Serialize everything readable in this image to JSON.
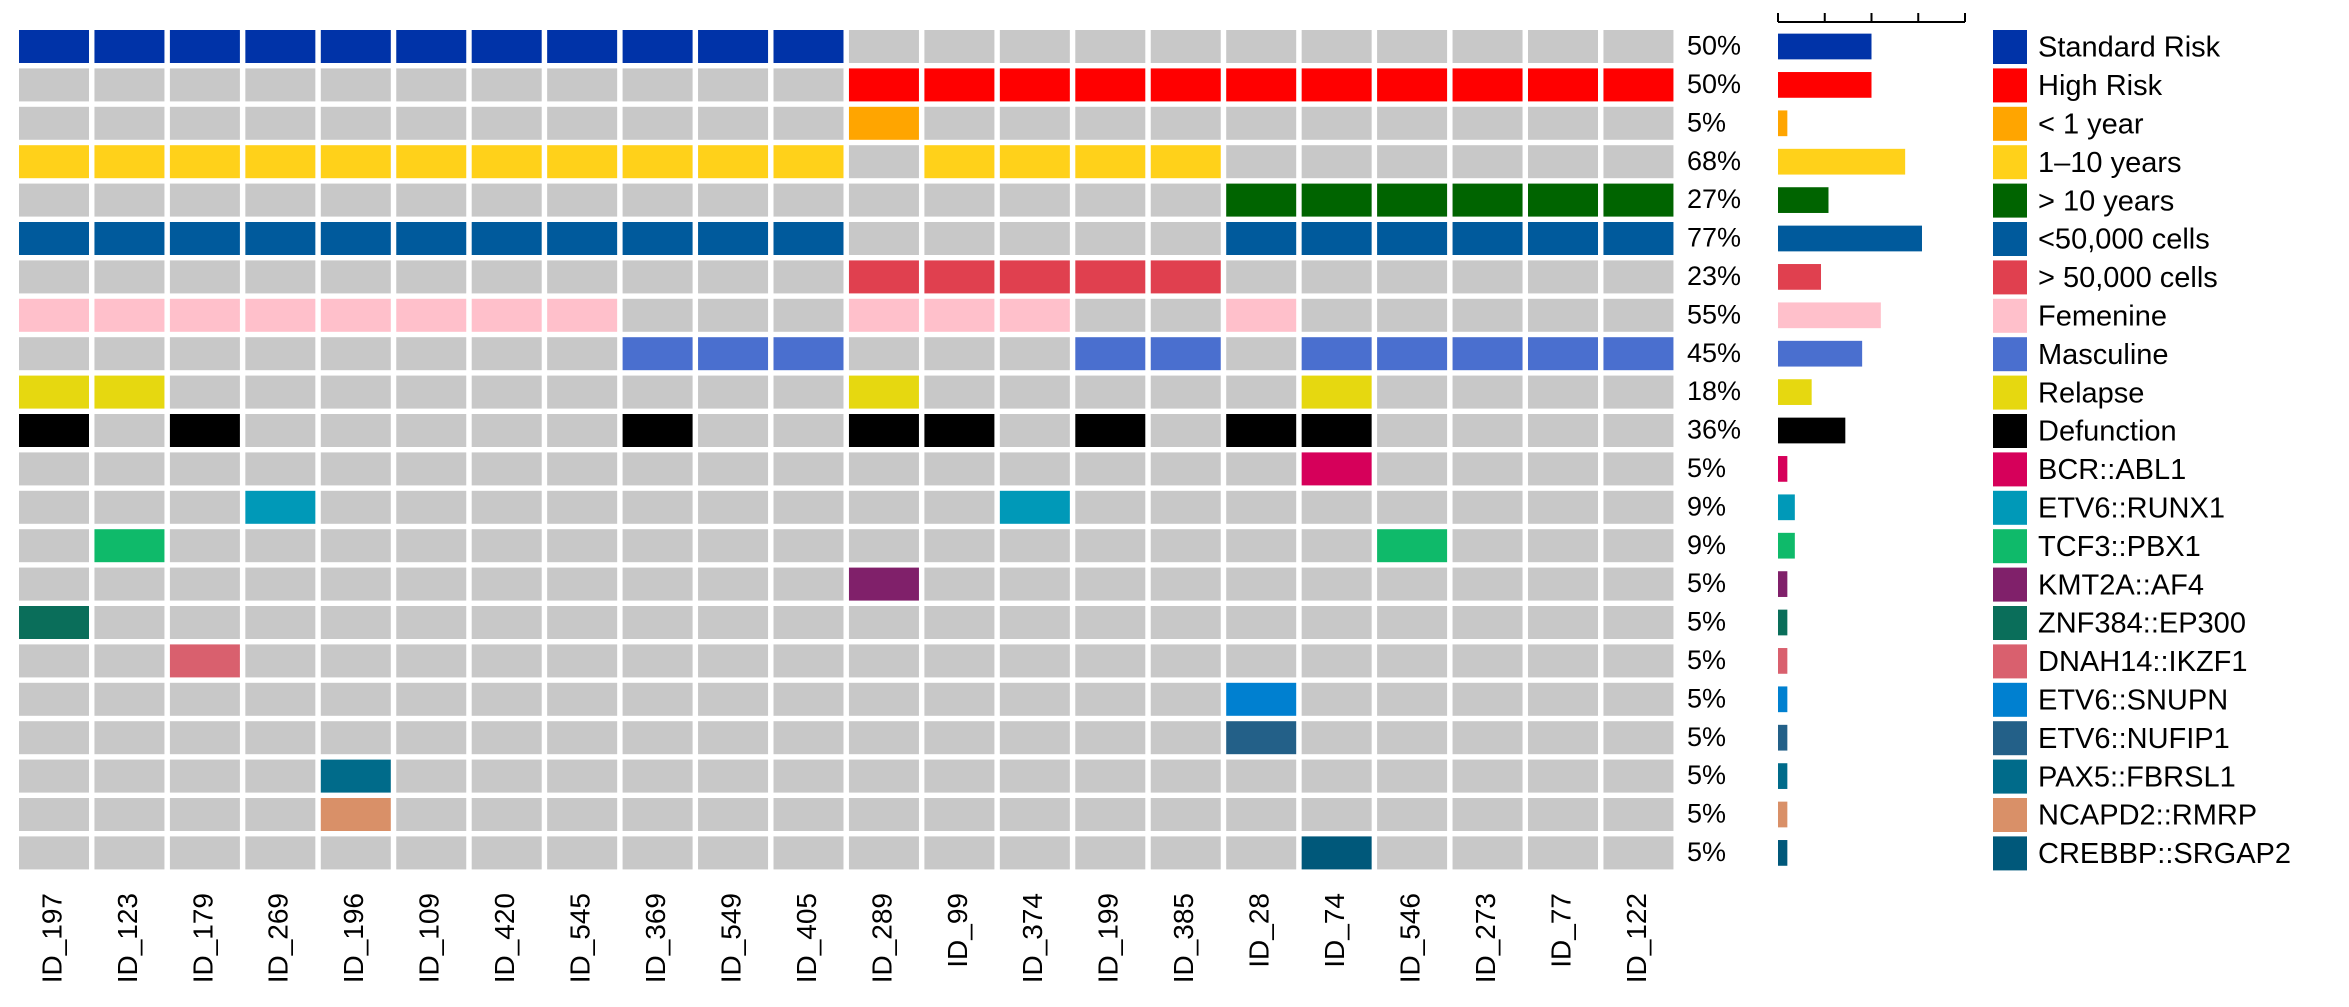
{
  "chart_data": {
    "type": "heatmap",
    "title": "",
    "xlabel": "",
    "ylabel": "",
    "background_color": "#c8c8c8",
    "samples": [
      "ID_197",
      "ID_123",
      "ID_179",
      "ID_269",
      "ID_196",
      "ID_109",
      "ID_420",
      "ID_545",
      "ID_369",
      "ID_549",
      "ID_405",
      "ID_289",
      "ID_99",
      "ID_374",
      "ID_199",
      "ID_385",
      "ID_28",
      "ID_74",
      "ID_546",
      "ID_273",
      "ID_77",
      "ID_122"
    ],
    "bar_axis": {
      "range": [
        0,
        100
      ],
      "ticks": [
        0,
        25,
        50,
        75,
        100
      ],
      "tick_labels_shown": false
    },
    "legend_position": "right",
    "rows": [
      {
        "name": "Standard Risk",
        "percent": "50%",
        "value": 50,
        "color": "#0033a8",
        "present": [
          1,
          1,
          1,
          1,
          1,
          1,
          1,
          1,
          1,
          1,
          1,
          0,
          0,
          0,
          0,
          0,
          0,
          0,
          0,
          0,
          0,
          0
        ]
      },
      {
        "name": "High Risk",
        "percent": "50%",
        "value": 50,
        "color": "#ff0000",
        "present": [
          0,
          0,
          0,
          0,
          0,
          0,
          0,
          0,
          0,
          0,
          0,
          1,
          1,
          1,
          1,
          1,
          1,
          1,
          1,
          1,
          1,
          1
        ]
      },
      {
        "name": "< 1 year",
        "percent": "5%",
        "value": 5,
        "color": "#ffa500",
        "present": [
          0,
          0,
          0,
          0,
          0,
          0,
          0,
          0,
          0,
          0,
          0,
          1,
          0,
          0,
          0,
          0,
          0,
          0,
          0,
          0,
          0,
          0
        ]
      },
      {
        "name": "1–10 years",
        "percent": "68%",
        "value": 68,
        "color": "#ffd11a",
        "present": [
          1,
          1,
          1,
          1,
          1,
          1,
          1,
          1,
          1,
          1,
          1,
          0,
          1,
          1,
          1,
          1,
          0,
          0,
          0,
          0,
          0,
          0
        ]
      },
      {
        "name": "> 10 years",
        "percent": "27%",
        "value": 27,
        "color": "#006400",
        "present": [
          0,
          0,
          0,
          0,
          0,
          0,
          0,
          0,
          0,
          0,
          0,
          0,
          0,
          0,
          0,
          0,
          1,
          1,
          1,
          1,
          1,
          1
        ]
      },
      {
        "name": "<50,000 cells",
        "percent": "77%",
        "value": 77,
        "color": "#005a9c",
        "present": [
          1,
          1,
          1,
          1,
          1,
          1,
          1,
          1,
          1,
          1,
          1,
          0,
          0,
          0,
          0,
          0,
          1,
          1,
          1,
          1,
          1,
          1
        ]
      },
      {
        "name": "> 50,000 cells",
        "percent": "23%",
        "value": 23,
        "color": "#e0404f",
        "present": [
          0,
          0,
          0,
          0,
          0,
          0,
          0,
          0,
          0,
          0,
          0,
          1,
          1,
          1,
          1,
          1,
          0,
          0,
          0,
          0,
          0,
          0
        ]
      },
      {
        "name": "Femenine",
        "percent": "55%",
        "value": 55,
        "color": "#ffc0cb",
        "present": [
          1,
          1,
          1,
          1,
          1,
          1,
          1,
          1,
          0,
          0,
          0,
          1,
          1,
          1,
          0,
          0,
          1,
          0,
          0,
          0,
          0,
          0
        ]
      },
      {
        "name": "Masculine",
        "percent": "45%",
        "value": 45,
        "color": "#4a6fcf",
        "present": [
          0,
          0,
          0,
          0,
          0,
          0,
          0,
          0,
          1,
          1,
          1,
          0,
          0,
          0,
          1,
          1,
          0,
          1,
          1,
          1,
          1,
          1
        ]
      },
      {
        "name": "Relapse",
        "percent": "18%",
        "value": 18,
        "color": "#e6d810",
        "present": [
          1,
          1,
          0,
          0,
          0,
          0,
          0,
          0,
          0,
          0,
          0,
          1,
          0,
          0,
          0,
          0,
          0,
          1,
          0,
          0,
          0,
          0
        ]
      },
      {
        "name": "Defunction",
        "percent": "36%",
        "value": 36,
        "color": "#000000",
        "present": [
          1,
          0,
          1,
          0,
          0,
          0,
          0,
          0,
          1,
          0,
          0,
          1,
          1,
          0,
          1,
          0,
          1,
          1,
          0,
          0,
          0,
          0
        ]
      },
      {
        "name": "BCR::ABL1",
        "percent": "5%",
        "value": 5,
        "color": "#d6005a",
        "present": [
          0,
          0,
          0,
          0,
          0,
          0,
          0,
          0,
          0,
          0,
          0,
          0,
          0,
          0,
          0,
          0,
          0,
          1,
          0,
          0,
          0,
          0
        ]
      },
      {
        "name": "ETV6::RUNX1",
        "percent": "9%",
        "value": 9,
        "color": "#0099b8",
        "present": [
          0,
          0,
          0,
          1,
          0,
          0,
          0,
          0,
          0,
          0,
          0,
          0,
          0,
          1,
          0,
          0,
          0,
          0,
          0,
          0,
          0,
          0
        ]
      },
      {
        "name": "TCF3::PBX1",
        "percent": "9%",
        "value": 9,
        "color": "#0fba6a",
        "present": [
          0,
          1,
          0,
          0,
          0,
          0,
          0,
          0,
          0,
          0,
          0,
          0,
          0,
          0,
          0,
          0,
          0,
          0,
          1,
          0,
          0,
          0
        ]
      },
      {
        "name": "KMT2A::AF4",
        "percent": "5%",
        "value": 5,
        "color": "#80206a",
        "present": [
          0,
          0,
          0,
          0,
          0,
          0,
          0,
          0,
          0,
          0,
          0,
          1,
          0,
          0,
          0,
          0,
          0,
          0,
          0,
          0,
          0,
          0
        ]
      },
      {
        "name": "ZNF384::EP300",
        "percent": "5%",
        "value": 5,
        "color": "#0a6e5a",
        "present": [
          1,
          0,
          0,
          0,
          0,
          0,
          0,
          0,
          0,
          0,
          0,
          0,
          0,
          0,
          0,
          0,
          0,
          0,
          0,
          0,
          0,
          0
        ]
      },
      {
        "name": "DNAH14::IKZF1",
        "percent": "5%",
        "value": 5,
        "color": "#d9606e",
        "present": [
          0,
          0,
          1,
          0,
          0,
          0,
          0,
          0,
          0,
          0,
          0,
          0,
          0,
          0,
          0,
          0,
          0,
          0,
          0,
          0,
          0,
          0
        ]
      },
      {
        "name": "ETV6::SNUPN",
        "percent": "5%",
        "value": 5,
        "color": "#0080d0",
        "present": [
          0,
          0,
          0,
          0,
          0,
          0,
          0,
          0,
          0,
          0,
          0,
          0,
          0,
          0,
          0,
          0,
          1,
          0,
          0,
          0,
          0,
          0
        ]
      },
      {
        "name": "ETV6::NUFIP1",
        "percent": "5%",
        "value": 5,
        "color": "#236088",
        "present": [
          0,
          0,
          0,
          0,
          0,
          0,
          0,
          0,
          0,
          0,
          0,
          0,
          0,
          0,
          0,
          0,
          1,
          0,
          0,
          0,
          0,
          0
        ]
      },
      {
        "name": "PAX5::FBRSL1",
        "percent": "5%",
        "value": 5,
        "color": "#006b8a",
        "present": [
          0,
          0,
          0,
          0,
          1,
          0,
          0,
          0,
          0,
          0,
          0,
          0,
          0,
          0,
          0,
          0,
          0,
          0,
          0,
          0,
          0,
          0
        ]
      },
      {
        "name": "NCAPD2::RMRP",
        "percent": "5%",
        "value": 5,
        "color": "#d99068",
        "present": [
          0,
          0,
          0,
          0,
          1,
          0,
          0,
          0,
          0,
          0,
          0,
          0,
          0,
          0,
          0,
          0,
          0,
          0,
          0,
          0,
          0,
          0
        ]
      },
      {
        "name": "CREBBP::SRGAP2",
        "percent": "5%",
        "value": 5,
        "color": "#00587a",
        "present": [
          0,
          0,
          0,
          0,
          0,
          0,
          0,
          0,
          0,
          0,
          0,
          0,
          0,
          0,
          0,
          0,
          0,
          1,
          0,
          0,
          0,
          0
        ]
      }
    ]
  }
}
